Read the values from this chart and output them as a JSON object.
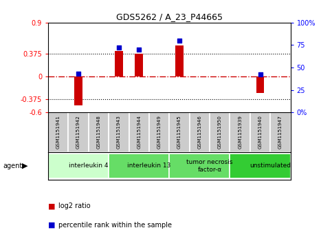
{
  "title": "GDS5262 / A_23_P44665",
  "samples": [
    "GSM1151941",
    "GSM1151942",
    "GSM1151948",
    "GSM1151943",
    "GSM1151944",
    "GSM1151949",
    "GSM1151945",
    "GSM1151946",
    "GSM1151950",
    "GSM1151939",
    "GSM1151940",
    "GSM1151947"
  ],
  "log2_ratio": [
    0.0,
    -0.48,
    0.0,
    0.42,
    0.38,
    0.0,
    0.52,
    0.0,
    0.0,
    0.0,
    -0.27,
    0.0
  ],
  "percentile": [
    50,
    43,
    50,
    72,
    70,
    50,
    80,
    50,
    50,
    50,
    42,
    50
  ],
  "show_blue": [
    false,
    true,
    false,
    true,
    true,
    false,
    true,
    false,
    false,
    false,
    true,
    false
  ],
  "ylim_left": [
    -0.6,
    0.9
  ],
  "ylim_right": [
    0,
    100
  ],
  "yticks_left": [
    -0.6,
    -0.375,
    0,
    0.375,
    0.9
  ],
  "yticks_right": [
    0,
    25,
    50,
    75,
    100
  ],
  "ytick_labels_left": [
    "-0.6",
    "-0.375",
    "0",
    "0.375",
    "0.9"
  ],
  "ytick_labels_right": [
    "0%",
    "25",
    "50",
    "75",
    "100%"
  ],
  "hlines": [
    0.375,
    -0.375
  ],
  "zero_line": 0,
  "agents": [
    {
      "label": "interleukin 4",
      "start": 0,
      "end": 3,
      "color": "#ccffcc"
    },
    {
      "label": "interleukin 13",
      "start": 3,
      "end": 6,
      "color": "#66dd66"
    },
    {
      "label": "tumor necrosis\nfactor-α",
      "start": 6,
      "end": 9,
      "color": "#66dd66"
    },
    {
      "label": "unstimulated",
      "start": 9,
      "end": 12,
      "color": "#33cc33"
    }
  ],
  "bar_color": "#cc0000",
  "blue_color": "#0000cc",
  "bar_width": 0.4,
  "dot_size": 22,
  "bg_color": "#ffffff",
  "sample_box_color": "#cccccc",
  "legend_items": [
    {
      "label": "log2 ratio",
      "color": "#cc0000"
    },
    {
      "label": "percentile rank within the sample",
      "color": "#0000cc"
    }
  ]
}
